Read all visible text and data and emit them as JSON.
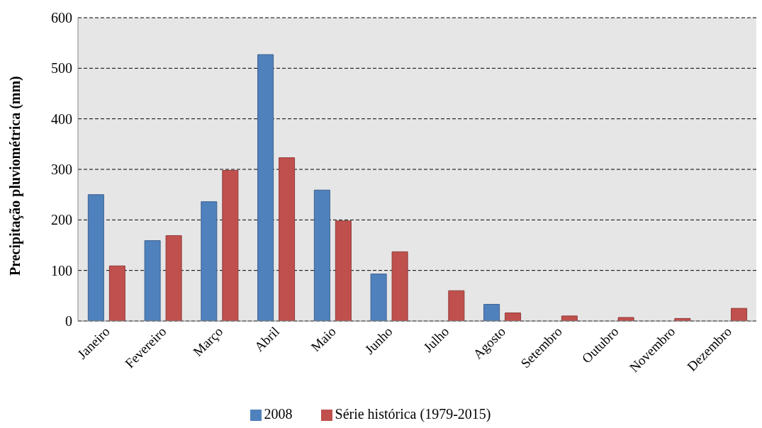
{
  "chart_data": {
    "type": "bar",
    "ylabel": "Precipitação pluviométrica (mm)",
    "categories": [
      "Janeiro",
      "Fevereiro",
      "Março",
      "Abril",
      "Maio",
      "Junho",
      "Julho",
      "Agosto",
      "Setembro",
      "Outubro",
      "Novembro",
      "Dezembro"
    ],
    "series": [
      {
        "name": "2008",
        "color": "#4f81bd",
        "values": [
          250,
          159,
          236,
          527,
          259,
          93,
          0,
          33,
          0,
          0,
          0,
          0
        ]
      },
      {
        "name": "Série histórica (1979-2015)",
        "color": "#c0504d",
        "values": [
          109,
          169,
          298,
          323,
          198,
          137,
          60,
          16,
          10,
          7,
          5,
          25
        ]
      }
    ],
    "ylim": [
      0,
      600
    ],
    "yticks": [
      0,
      100,
      200,
      300,
      400,
      500,
      600
    ],
    "grid": "y",
    "legend": "bottom"
  }
}
